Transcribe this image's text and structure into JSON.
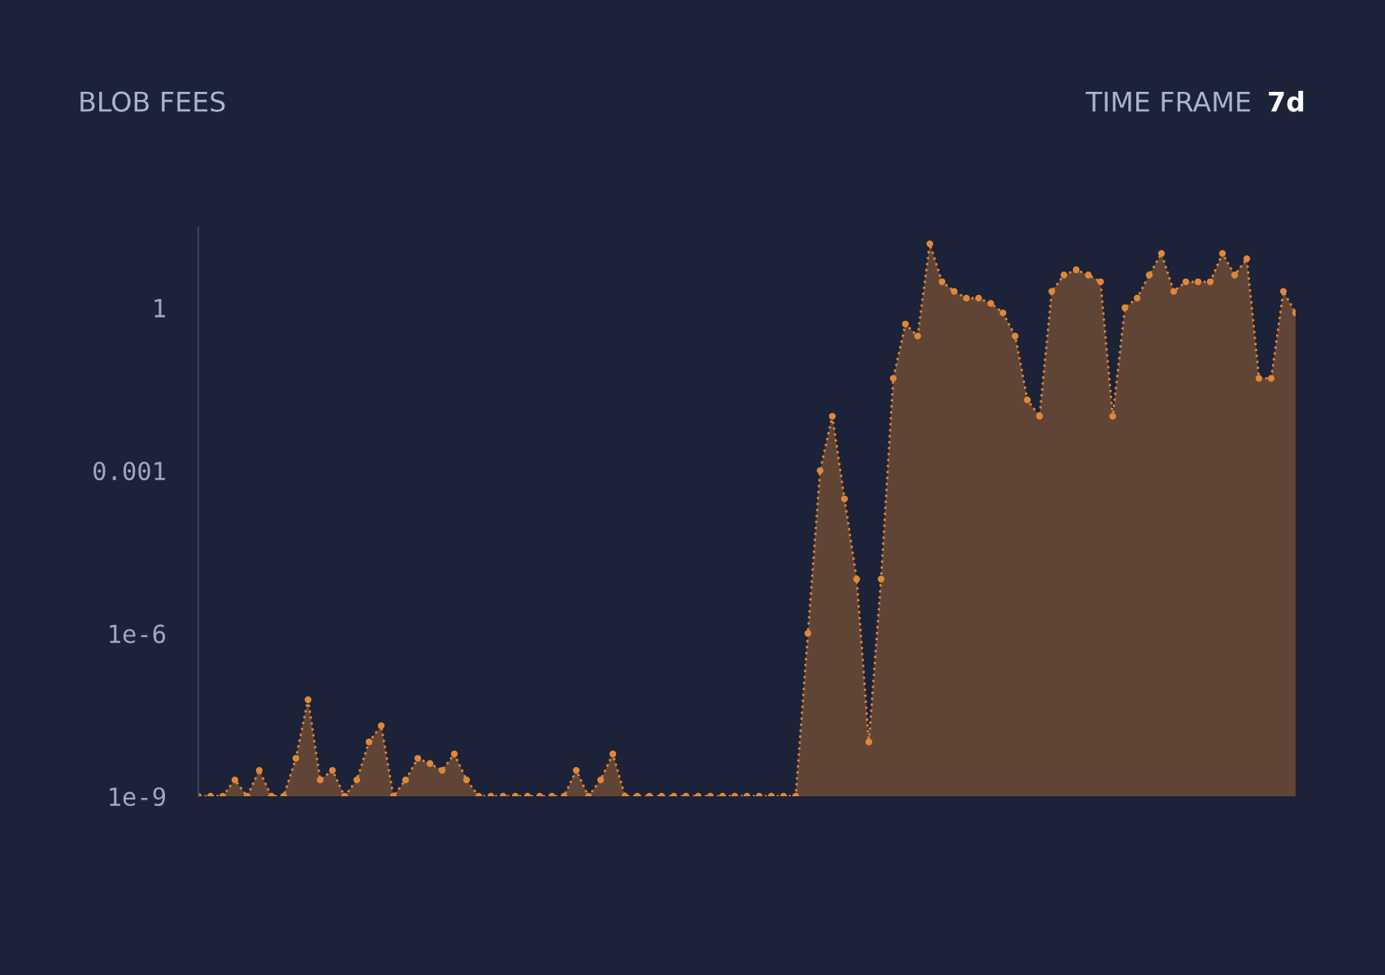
{
  "chart_data": {
    "type": "area",
    "title": "BLOB FEES",
    "annotations": [
      "TIME FRAME",
      "7d"
    ],
    "categories": [
      null,
      null,
      null,
      null,
      null,
      null,
      null,
      null,
      null,
      null,
      null,
      null,
      null,
      null,
      null,
      null,
      null,
      null,
      null,
      null,
      null,
      null,
      null,
      null,
      null,
      null,
      null,
      null,
      null,
      null,
      null,
      null,
      null,
      null,
      null,
      null,
      null,
      null,
      null,
      null,
      null,
      null,
      null,
      null,
      null,
      null,
      null,
      null,
      null,
      null,
      null,
      null,
      null,
      null,
      null,
      null,
      null,
      null,
      null,
      null,
      null,
      null,
      null,
      null,
      null,
      null,
      null,
      null,
      null,
      null,
      null,
      null,
      null,
      null,
      null,
      null,
      null,
      null,
      null,
      null,
      null,
      null,
      null,
      null,
      null,
      null,
      null,
      null,
      null,
      null,
      null
    ],
    "series": [
      {
        "color": "#e0873a",
        "values": [
          1e-09,
          1e-09,
          1e-09,
          2e-09,
          1e-09,
          3e-09,
          1e-09,
          1e-09,
          5e-09,
          6e-08,
          2e-09,
          3e-09,
          1e-09,
          2e-09,
          1e-08,
          2e-08,
          1e-09,
          2e-09,
          5e-09,
          4e-09,
          3e-09,
          6e-09,
          2e-09,
          1e-09,
          1e-09,
          1e-09,
          1e-09,
          1e-09,
          1e-09,
          1e-09,
          1e-09,
          3e-09,
          1e-09,
          2e-09,
          6e-09,
          1e-09,
          1e-09,
          1e-09,
          1e-09,
          1e-09,
          1e-09,
          1e-09,
          1e-09,
          1e-09,
          1e-09,
          1e-09,
          1e-09,
          1e-09,
          1e-09,
          1e-09,
          1e-06,
          0.001,
          0.01,
          0.0003,
          1e-05,
          1e-08,
          1e-05,
          0.05,
          0.5,
          0.3,
          15,
          3,
          2,
          1.5,
          1.5,
          1.2,
          0.8,
          0.3,
          0.02,
          0.01,
          2,
          4,
          5,
          4,
          3,
          0.01,
          1,
          1.5,
          4,
          10,
          2,
          3,
          3,
          3,
          10,
          4,
          8,
          0.05,
          0.05,
          2,
          0.8
        ]
      }
    ],
    "log": true,
    "ylim": [
      1e-09,
      30
    ],
    "yticks": [
      {
        "value": 1e-09,
        "label": "1e-9"
      },
      {
        "value": 1e-06,
        "label": "1e-6"
      },
      {
        "value": 0.001,
        "label": "0.001"
      },
      {
        "value": 1,
        "label": "1"
      }
    ],
    "tick_labels": "y",
    "grid": false,
    "legend": false,
    "marker": "circle",
    "line_style": "dotted"
  }
}
